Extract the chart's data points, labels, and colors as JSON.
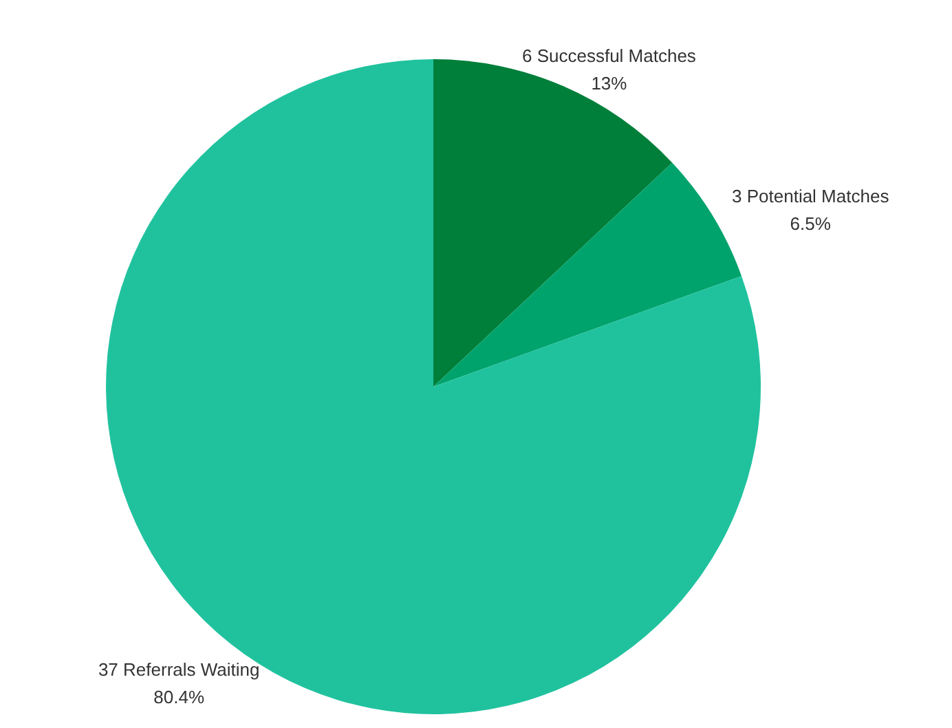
{
  "chart_data": {
    "type": "pie",
    "categories": [
      "6 Successful Matches",
      "3 Potential Matches",
      "37 Referrals Waiting"
    ],
    "values": [
      13,
      6.5,
      80.4
    ],
    "value_labels": [
      "13%",
      "6.5%",
      "80.4%"
    ],
    "colors": [
      "#007f3a",
      "#00a36c",
      "#20c29e"
    ]
  }
}
